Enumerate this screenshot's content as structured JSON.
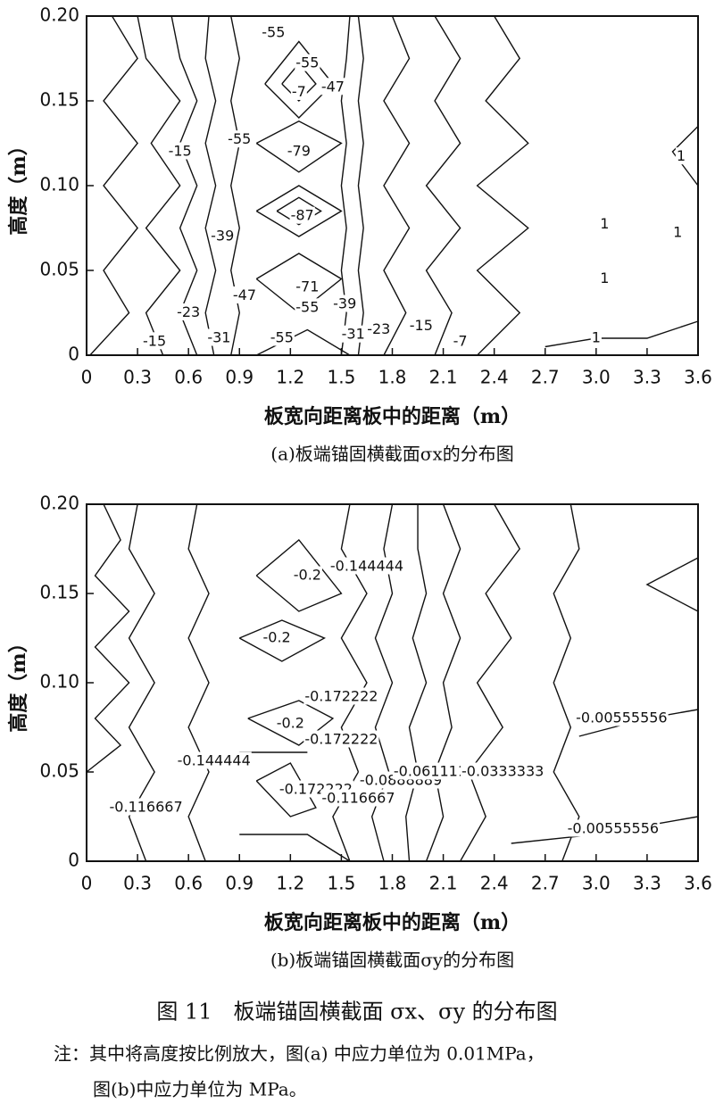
{
  "chart_data": [
    {
      "type": "contour",
      "title": "(a)板端锚固横截面σx的分布图",
      "x_label": "板宽向距离板中的距离（m）",
      "y_label": "高度（m）",
      "xlim": [
        0,
        3.6
      ],
      "ylim": [
        0,
        0.2
      ],
      "xticks": [
        0,
        0.3,
        0.6,
        0.9,
        1.2,
        1.5,
        1.8,
        2.1,
        2.4,
        2.7,
        {
          "value": 3,
          "label": "3.0"
        },
        3.3,
        3.6
      ],
      "yticks": [
        0,
        {
          "value": 0.05,
          "label": "0.05"
        },
        {
          "value": 0.1,
          "label": "0.10"
        },
        0.15,
        {
          "value": 0.2,
          "label": "0.20"
        }
      ],
      "lines": [
        {
          "x": [
            0.02,
            0.25,
            0.1,
            0.3,
            0.1,
            0.3,
            0.1,
            0.3,
            0.15
          ],
          "y": [
            0,
            0.025,
            0.05,
            0.075,
            0.1,
            0.125,
            0.15,
            0.175,
            0.2
          ]
        },
        {
          "x": [
            0.45,
            0.35,
            0.55,
            0.35,
            0.55,
            0.38,
            0.55,
            0.35,
            0.3
          ],
          "y": [
            0,
            0.025,
            0.05,
            0.075,
            0.1,
            0.125,
            0.15,
            0.175,
            0.2
          ]
        },
        {
          "x": [
            0.65,
            0.55,
            0.65,
            0.55,
            0.65,
            0.55,
            0.65,
            0.55,
            0.5
          ],
          "y": [
            0,
            0.025,
            0.05,
            0.075,
            0.1,
            0.125,
            0.15,
            0.175,
            0.2
          ]
        },
        {
          "x": [
            0.75,
            0.7,
            0.76,
            0.7,
            0.76,
            0.7,
            0.76,
            0.7,
            0.72
          ],
          "y": [
            0,
            0.025,
            0.05,
            0.075,
            0.1,
            0.125,
            0.15,
            0.175,
            0.2
          ]
        },
        {
          "x": [
            0.85,
            0.9,
            0.85,
            0.9,
            0.85,
            0.9,
            0.85,
            0.9,
            0.85
          ],
          "y": [
            0,
            0.025,
            0.05,
            0.075,
            0.1,
            0.125,
            0.15,
            0.175,
            0.2
          ]
        },
        {
          "x": [
            1.5,
            1.53,
            1.5,
            1.53,
            1.5,
            1.53,
            1.5,
            1.53,
            1.55
          ],
          "y": [
            0,
            0.025,
            0.05,
            0.075,
            0.1,
            0.125,
            0.15,
            0.175,
            0.2
          ]
        },
        {
          "x": [
            1.6,
            1.63,
            1.6,
            1.63,
            1.6,
            1.63,
            1.6,
            1.63,
            1.6
          ],
          "y": [
            0,
            0.025,
            0.05,
            0.075,
            0.1,
            0.125,
            0.15,
            0.175,
            0.2
          ]
        },
        {
          "x": [
            1.75,
            1.88,
            1.75,
            1.9,
            1.75,
            1.9,
            1.75,
            1.9,
            1.8
          ],
          "y": [
            0,
            0.025,
            0.05,
            0.075,
            0.1,
            0.125,
            0.15,
            0.175,
            0.2
          ]
        },
        {
          "x": [
            2.05,
            2.15,
            2.0,
            2.2,
            2.0,
            2.2,
            2.05,
            2.2,
            2.05
          ],
          "y": [
            0,
            0.025,
            0.05,
            0.075,
            0.1,
            0.125,
            0.15,
            0.175,
            0.2
          ]
        },
        {
          "x": [
            2.3,
            2.55,
            2.3,
            2.6,
            2.3,
            2.6,
            2.35,
            2.55,
            2.4
          ],
          "y": [
            0,
            0.025,
            0.05,
            0.075,
            0.1,
            0.125,
            0.15,
            0.175,
            0.2
          ]
        },
        {
          "x": [
            2.7,
            3.0,
            3.3,
            3.6
          ],
          "y": [
            0.005,
            0.01,
            0.01,
            0.02
          ]
        },
        {
          "x": [
            3.6,
            3.45,
            3.6
          ],
          "y": [
            0.135,
            0.12,
            0.1
          ]
        },
        {
          "x": [
            1.05,
            1.25,
            1.45,
            1.25,
            1.05
          ],
          "y": [
            0.16,
            0.185,
            0.16,
            0.14,
            0.16
          ]
        },
        {
          "x": [
            1.15,
            1.25,
            1.35,
            1.25,
            1.15
          ],
          "y": [
            0.16,
            0.172,
            0.16,
            0.15,
            0.16
          ]
        },
        {
          "x": [
            1.0,
            1.25,
            1.5,
            1.25,
            1.0
          ],
          "y": [
            0.125,
            0.138,
            0.125,
            0.108,
            0.125
          ]
        },
        {
          "x": [
            1.0,
            1.25,
            1.5,
            1.25,
            1.0
          ],
          "y": [
            0.085,
            0.1,
            0.085,
            0.07,
            0.085
          ]
        },
        {
          "x": [
            1.12,
            1.25,
            1.38,
            1.25,
            1.12
          ],
          "y": [
            0.085,
            0.093,
            0.085,
            0.077,
            0.085
          ]
        },
        {
          "x": [
            1.0,
            1.25,
            1.5,
            1.25,
            1.0
          ],
          "y": [
            0.045,
            0.06,
            0.045,
            0.025,
            0.045
          ]
        },
        {
          "x": [
            1.0,
            1.3,
            1.55
          ],
          "y": [
            0.0,
            0.015,
            0.0
          ]
        }
      ],
      "labels": [
        {
          "value": -55,
          "x": 1.1,
          "y": 0.19
        },
        {
          "value": -55,
          "x": 1.3,
          "y": 0.172
        },
        {
          "value": -47,
          "x": 1.45,
          "y": 0.158
        },
        {
          "value": -7,
          "x": 1.25,
          "y": 0.155
        },
        {
          "value": -15,
          "x": 0.55,
          "y": 0.12
        },
        {
          "value": -55,
          "x": 0.9,
          "y": 0.127
        },
        {
          "value": -79,
          "x": 1.25,
          "y": 0.12
        },
        {
          "value": -87,
          "x": 1.27,
          "y": 0.082
        },
        {
          "value": -39,
          "x": 0.8,
          "y": 0.07
        },
        {
          "value": -71,
          "x": 1.3,
          "y": 0.04
        },
        {
          "value": -47,
          "x": 0.93,
          "y": 0.035
        },
        {
          "value": -55,
          "x": 1.3,
          "y": 0.028
        },
        {
          "value": -39,
          "x": 1.52,
          "y": 0.03
        },
        {
          "value": -23,
          "x": 0.6,
          "y": 0.025
        },
        {
          "value": -31,
          "x": 0.78,
          "y": 0.01
        },
        {
          "value": -15,
          "x": 0.4,
          "y": 0.008
        },
        {
          "value": -55,
          "x": 1.15,
          "y": 0.01
        },
        {
          "value": -31,
          "x": 1.57,
          "y": 0.012
        },
        {
          "value": -23,
          "x": 1.72,
          "y": 0.015
        },
        {
          "value": -15,
          "x": 1.97,
          "y": 0.017
        },
        {
          "value": -7,
          "x": 2.2,
          "y": 0.008
        },
        {
          "value": 1,
          "x": 3.0,
          "y": 0.01
        },
        {
          "value": 1,
          "x": 3.05,
          "y": 0.045
        },
        {
          "value": 1,
          "x": 3.05,
          "y": 0.077
        },
        {
          "value": 1,
          "x": 3.48,
          "y": 0.072
        },
        {
          "value": 1,
          "x": 3.5,
          "y": 0.117
        }
      ]
    },
    {
      "type": "contour",
      "title": "(b)板端锚固横截面σy的分布图",
      "x_label": "板宽向距离板中的距离（m）",
      "y_label": "高度（m）",
      "xlim": [
        0,
        3.6
      ],
      "ylim": [
        0,
        0.2
      ],
      "xticks": [
        0,
        0.3,
        0.6,
        0.9,
        1.2,
        1.5,
        1.8,
        2.1,
        2.4,
        2.7,
        {
          "value": 3,
          "label": "3.0"
        },
        3.3,
        3.6
      ],
      "yticks": [
        0,
        {
          "value": 0.05,
          "label": "0.05"
        },
        {
          "value": 0.1,
          "label": "0.10"
        },
        0.15,
        {
          "value": 0.2,
          "label": "0.20"
        }
      ],
      "lines": [
        {
          "x": [
            0.0,
            0.2,
            0.05,
            0.25,
            0.05,
            0.25,
            0.05,
            0.2,
            0.1
          ],
          "y": [
            0.05,
            0.065,
            0.08,
            0.1,
            0.12,
            0.14,
            0.16,
            0.18,
            0.2
          ]
        },
        {
          "x": [
            0.35,
            0.25,
            0.4,
            0.25,
            0.4,
            0.25,
            0.4,
            0.25,
            0.3
          ],
          "y": [
            0,
            0.025,
            0.05,
            0.075,
            0.1,
            0.125,
            0.15,
            0.175,
            0.2
          ]
        },
        {
          "x": [
            0.7,
            0.6,
            0.72,
            0.6,
            0.72,
            0.6,
            0.72,
            0.6,
            0.65
          ],
          "y": [
            0,
            0.025,
            0.05,
            0.075,
            0.1,
            0.125,
            0.15,
            0.175,
            0.2
          ]
        },
        {
          "x": [
            1.55,
            1.45,
            1.6,
            1.5,
            1.65,
            1.5,
            1.65,
            1.5,
            1.55
          ],
          "y": [
            0,
            0.025,
            0.05,
            0.075,
            0.1,
            0.125,
            0.15,
            0.175,
            0.2
          ]
        },
        {
          "x": [
            1.75,
            1.68,
            1.78,
            1.7,
            1.8,
            1.7,
            1.8,
            1.75,
            1.8
          ],
          "y": [
            0,
            0.025,
            0.05,
            0.075,
            0.1,
            0.125,
            0.15,
            0.175,
            0.2
          ]
        },
        {
          "x": [
            1.9,
            1.88,
            1.95,
            1.9,
            2.0,
            1.92,
            2.0,
            1.95,
            1.95
          ],
          "y": [
            0,
            0.025,
            0.05,
            0.075,
            0.1,
            0.125,
            0.15,
            0.175,
            0.2
          ]
        },
        {
          "x": [
            2.0,
            2.1,
            2.05,
            2.15,
            2.1,
            2.2,
            2.1,
            2.2,
            2.1
          ],
          "y": [
            0,
            0.025,
            0.05,
            0.075,
            0.1,
            0.125,
            0.15,
            0.175,
            0.2
          ]
        },
        {
          "x": [
            2.2,
            2.35,
            2.25,
            2.45,
            2.3,
            2.5,
            2.35,
            2.55,
            2.4
          ],
          "y": [
            0,
            0.025,
            0.05,
            0.075,
            0.1,
            0.125,
            0.15,
            0.175,
            0.2
          ]
        },
        {
          "x": [
            2.8,
            2.9,
            2.75,
            2.85,
            2.75,
            2.85,
            2.75,
            2.9,
            2.85
          ],
          "y": [
            0,
            0.025,
            0.05,
            0.075,
            0.1,
            0.125,
            0.15,
            0.175,
            0.2
          ]
        },
        {
          "x": [
            2.9,
            3.3,
            3.6
          ],
          "y": [
            0.07,
            0.08,
            0.085
          ]
        },
        {
          "x": [
            3.6,
            3.3,
            3.6
          ],
          "y": [
            0.17,
            0.155,
            0.14
          ]
        },
        {
          "x": [
            2.5,
            3.0,
            3.6
          ],
          "y": [
            0.01,
            0.015,
            0.025
          ]
        },
        {
          "x": [
            0.9,
            1.3,
            1.55
          ],
          "y": [
            0.015,
            0.015,
            0.0
          ]
        },
        {
          "x": [
            1.0,
            1.25,
            1.5,
            1.25,
            1.0
          ],
          "y": [
            0.16,
            0.18,
            0.15,
            0.14,
            0.16
          ]
        },
        {
          "x": [
            0.9,
            1.15,
            1.4,
            1.15,
            0.9
          ],
          "y": [
            0.125,
            0.135,
            0.125,
            0.112,
            0.125
          ]
        },
        {
          "x": [
            0.95,
            1.25,
            1.45,
            1.25,
            0.95
          ],
          "y": [
            0.08,
            0.09,
            0.08,
            0.065,
            0.08
          ]
        },
        {
          "x": [
            1.0,
            1.2,
            1.35,
            1.2,
            1.0
          ],
          "y": [
            0.045,
            0.055,
            0.03,
            0.025,
            0.045
          ]
        },
        {
          "x": [
            0.9,
            1.3
          ],
          "y": [
            0.061,
            0.061
          ]
        }
      ],
      "labels": [
        {
          "value": -0.144444,
          "x": 1.65,
          "y": 0.165
        },
        {
          "value": -0.2,
          "x": 1.3,
          "y": 0.16
        },
        {
          "value": -0.2,
          "x": 1.12,
          "y": 0.125
        },
        {
          "value": -0.172222,
          "x": 1.5,
          "y": 0.092
        },
        {
          "value": -0.2,
          "x": 1.2,
          "y": 0.077
        },
        {
          "value": -0.172222,
          "x": 1.5,
          "y": 0.068
        },
        {
          "value": -0.144444,
          "x": 0.75,
          "y": 0.056
        },
        {
          "value": -0.172222,
          "x": 1.35,
          "y": 0.04
        },
        {
          "value": -0.116667,
          "x": 0.35,
          "y": 0.03
        },
        {
          "value": -0.116667,
          "x": 1.6,
          "y": 0.035
        },
        {
          "value": -0.0888889,
          "x": 1.85,
          "y": 0.045
        },
        {
          "value": -0.0611111,
          "x": 2.05,
          "y": 0.05
        },
        {
          "value": -0.0333333,
          "x": 2.45,
          "y": 0.05
        },
        {
          "value": -0.00555556,
          "x": 3.15,
          "y": 0.08
        },
        {
          "value": -0.00555556,
          "x": 3.1,
          "y": 0.018
        }
      ]
    }
  ],
  "caption": "图 11　板端锚固横截面 σx、σy 的分布图",
  "note": [
    "注：其中将高度按比例放大，图(a) 中应力单位为 0.01MPa，",
    "图(b)中应力单位为 MPa。"
  ]
}
